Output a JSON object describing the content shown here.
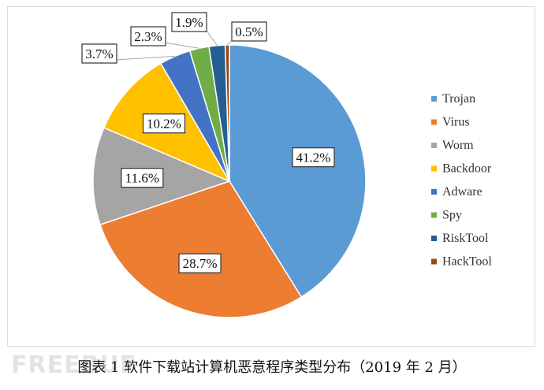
{
  "chart_data": {
    "type": "pie",
    "categories": [
      "Trojan",
      "Virus",
      "Worm",
      "Backdoor",
      "Adware",
      "Spy",
      "RiskTool",
      "HackTool"
    ],
    "values": [
      41.2,
      28.7,
      11.6,
      10.2,
      3.7,
      2.3,
      1.9,
      0.5
    ],
    "labels": [
      "41.2%",
      "28.7%",
      "11.6%",
      "10.2%",
      "3.7%",
      "2.3%",
      "1.9%",
      "0.5%"
    ],
    "colors": [
      "#5b9bd5",
      "#ed7d31",
      "#a5a5a5",
      "#ffc000",
      "#4472c4",
      "#70ad47",
      "#255e91",
      "#9e480e"
    ],
    "legend": "right"
  },
  "caption": "图表 1 软件下载站计算机恶意程序类型分布（2019 年 2 月）",
  "watermark": "FREEBUF"
}
